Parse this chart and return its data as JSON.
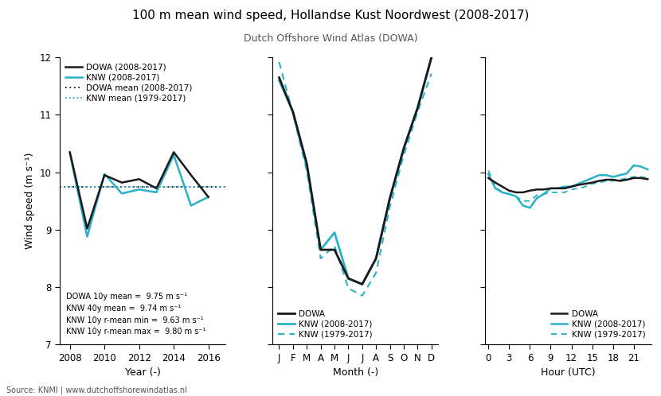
{
  "title": "100 m mean wind speed, Hollandse Kust Noordwest (2008-2017)",
  "subtitle": "Dutch Offshore Wind Atlas (DOWA)",
  "source_text": "Source: KNMI | www.dutchoffshorewindatlas.nl",
  "ylabel": "Wind speed (m s⁻¹)",
  "colors": {
    "dowa": "#1a1a1a",
    "knw": "#2ab0c8",
    "dowa_mean": "#1a1a1a",
    "knw_mean": "#2ab0c8"
  },
  "ylim": [
    7,
    12
  ],
  "yticks": [
    7,
    8,
    9,
    10,
    11,
    12
  ],
  "panel1": {
    "xlabel": "Year (-)",
    "x": [
      2008,
      2009,
      2010,
      2011,
      2012,
      2013,
      2014,
      2015,
      2016
    ],
    "dowa": [
      10.35,
      9.02,
      9.95,
      9.82,
      9.88,
      9.72,
      10.35,
      9.95,
      9.57
    ],
    "knw": [
      10.33,
      8.88,
      9.97,
      9.63,
      9.7,
      9.65,
      10.3,
      9.42,
      9.57
    ],
    "dowa_mean": 9.75,
    "knw_mean": 9.74,
    "xticks": [
      2008,
      2010,
      2012,
      2014,
      2016
    ],
    "legend": [
      "DOWA (2008-2017)",
      "KNW (2008-2017)",
      "DOWA mean (2008-2017)",
      "KNW mean (1979-2017)"
    ],
    "annotation": "DOWA 10y mean =  9.75 m s⁻¹\nKNW 40y mean =  9.74 m s⁻¹\nKNW 10y r-mean min =  9.63 m s⁻¹\nKNW 10y r-mean max =  9.80 m s⁻¹"
  },
  "panel2": {
    "xlabel": "Month (-)",
    "x": [
      0,
      1,
      2,
      3,
      4,
      5,
      6,
      7,
      8,
      9,
      10,
      11
    ],
    "month_labels": [
      "J",
      "F",
      "M",
      "A",
      "M",
      "J",
      "J",
      "A",
      "S",
      "O",
      "N",
      "D"
    ],
    "dowa": [
      11.65,
      11.05,
      10.15,
      8.65,
      8.65,
      8.15,
      8.05,
      8.5,
      9.55,
      10.42,
      11.12,
      12.0
    ],
    "knw_2008": [
      11.6,
      11.05,
      10.1,
      8.65,
      8.95,
      8.15,
      8.05,
      8.5,
      9.55,
      10.4,
      11.12,
      12.0
    ],
    "knw_1979": [
      11.92,
      11.02,
      10.02,
      8.5,
      8.72,
      7.98,
      7.85,
      8.25,
      9.4,
      10.3,
      11.05,
      11.72
    ],
    "legend": [
      "DOWA",
      "KNW (2008-2017)",
      "KNW (1979-2017)"
    ]
  },
  "panel3": {
    "xlabel": "Hour (UTC)",
    "x": [
      0,
      1,
      2,
      3,
      4,
      5,
      6,
      7,
      8,
      9,
      10,
      11,
      12,
      13,
      14,
      15,
      16,
      17,
      18,
      19,
      20,
      21,
      22,
      23
    ],
    "xticks": [
      0,
      3,
      6,
      9,
      12,
      15,
      18,
      21
    ],
    "dowa": [
      9.9,
      9.82,
      9.75,
      9.68,
      9.65,
      9.65,
      9.68,
      9.7,
      9.7,
      9.72,
      9.72,
      9.72,
      9.75,
      9.78,
      9.8,
      9.82,
      9.85,
      9.87,
      9.87,
      9.85,
      9.87,
      9.9,
      9.9,
      9.88
    ],
    "knw_2008": [
      9.97,
      9.72,
      9.65,
      9.62,
      9.58,
      9.42,
      9.38,
      9.55,
      9.62,
      9.72,
      9.72,
      9.75,
      9.75,
      9.8,
      9.85,
      9.9,
      9.95,
      9.95,
      9.92,
      9.95,
      9.98,
      10.12,
      10.1,
      10.05
    ],
    "knw_1979": [
      10.03,
      9.75,
      9.65,
      9.62,
      9.58,
      9.5,
      9.5,
      9.6,
      9.62,
      9.65,
      9.65,
      9.65,
      9.7,
      9.72,
      9.75,
      9.8,
      9.82,
      9.85,
      9.85,
      9.87,
      9.9,
      9.92,
      9.92,
      9.9
    ],
    "legend": [
      "DOWA",
      "KNW (2008-2017)",
      "KNW (1979-2017)"
    ]
  }
}
